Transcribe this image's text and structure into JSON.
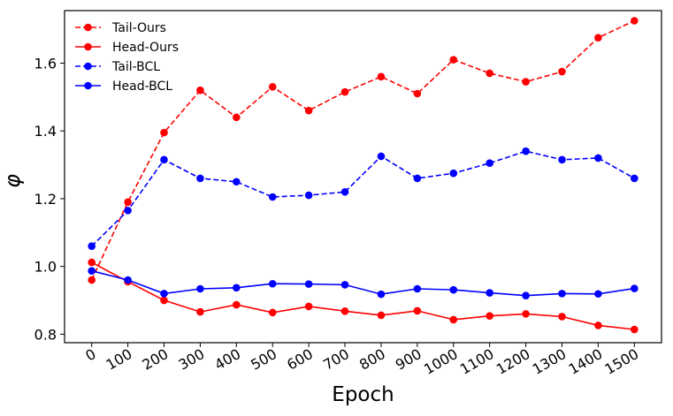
{
  "chart_data": {
    "type": "line",
    "xlabel": "Epoch",
    "ylabel": "φ",
    "x": [
      0,
      100,
      200,
      300,
      400,
      500,
      600,
      700,
      800,
      900,
      1000,
      1100,
      1200,
      1300,
      1400,
      1500
    ],
    "x_tick_labels": [
      "0",
      "100",
      "200",
      "300",
      "400",
      "500",
      "600",
      "700",
      "800",
      "900",
      "1000",
      "1100",
      "1200",
      "1300",
      "1400",
      "1500"
    ],
    "y_ticks": [
      0.8,
      1.0,
      1.2,
      1.4,
      1.6
    ],
    "y_tick_labels": [
      "0.8",
      "1.0",
      "1.2",
      "1.4",
      "1.6"
    ],
    "xlim": [
      -75,
      1575
    ],
    "ylim": [
      0.775,
      1.755
    ],
    "grid": false,
    "legend_position": "top-left",
    "series": [
      {
        "name": "Tail-Ours",
        "color": "#ff0000",
        "style": "dashed",
        "values": [
          0.96,
          1.19,
          1.395,
          1.52,
          1.44,
          1.53,
          1.46,
          1.515,
          1.56,
          1.51,
          1.61,
          1.57,
          1.545,
          1.575,
          1.675,
          1.725
        ]
      },
      {
        "name": "Head-Ours",
        "color": "#ff0000",
        "style": "solid",
        "values": [
          1.012,
          0.955,
          0.9,
          0.866,
          0.887,
          0.864,
          0.882,
          0.868,
          0.856,
          0.869,
          0.843,
          0.854,
          0.86,
          0.852,
          0.826,
          0.814
        ]
      },
      {
        "name": "Tail-BCL",
        "color": "#0000ff",
        "style": "dashed",
        "values": [
          1.06,
          1.165,
          1.315,
          1.26,
          1.25,
          1.205,
          1.21,
          1.22,
          1.325,
          1.26,
          1.275,
          1.305,
          1.34,
          1.315,
          1.32,
          1.26
        ]
      },
      {
        "name": "Head-BCL",
        "color": "#0000ff",
        "style": "solid",
        "values": [
          0.987,
          0.96,
          0.92,
          0.934,
          0.937,
          0.949,
          0.948,
          0.946,
          0.918,
          0.934,
          0.931,
          0.922,
          0.914,
          0.92,
          0.919,
          0.935
        ]
      }
    ]
  }
}
